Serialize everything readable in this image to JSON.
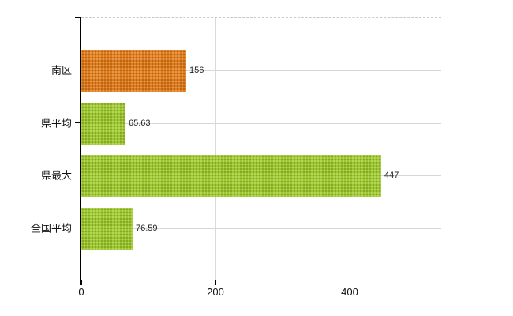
{
  "chart_data": {
    "type": "bar",
    "orientation": "horizontal",
    "title": "",
    "categories": [
      "南区",
      "県平均",
      "県最大",
      "全国平均"
    ],
    "values": [
      156,
      65.63,
      447,
      76.59
    ],
    "value_labels": [
      "156",
      "65.63",
      "447",
      "76.59"
    ],
    "bar_colors": [
      "#dd7a1d",
      "#9cc832",
      "#9cc832",
      "#9cc832"
    ],
    "xlim": [
      0,
      536.4
    ],
    "x_ticks": [
      0,
      200,
      400
    ],
    "x_tick_labels": [
      "0",
      "200",
      "400"
    ],
    "grid": true,
    "legend": false,
    "background_color": "#ffffff",
    "axis_color": "#000000",
    "gridline_color": "#d6d9d2"
  }
}
